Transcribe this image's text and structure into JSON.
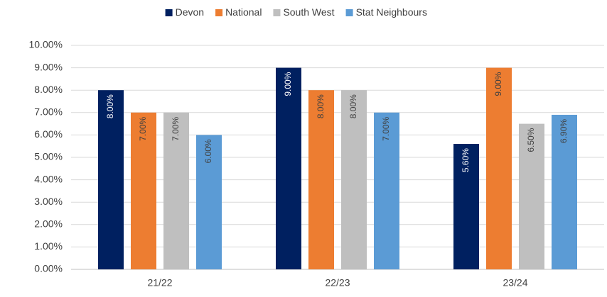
{
  "chart_data": {
    "type": "bar",
    "categories": [
      "21/22",
      "22/23",
      "23/24"
    ],
    "series": [
      {
        "name": "Devon",
        "color": "#002060",
        "label_color": "#ffffff",
        "values": [
          8,
          9,
          5.6
        ],
        "value_labels": [
          "8.00%",
          "9.00%",
          "5.60%"
        ]
      },
      {
        "name": "National",
        "color": "#ed7d31",
        "label_color": "#404040",
        "values": [
          7,
          8,
          9
        ],
        "value_labels": [
          "7.00%",
          "8.00%",
          "9.00%"
        ]
      },
      {
        "name": "South West",
        "color": "#bfbfbf",
        "label_color": "#404040",
        "values": [
          7,
          8,
          6.5
        ],
        "value_labels": [
          "7.00%",
          "8.00%",
          "6.50%"
        ]
      },
      {
        "name": "Stat Neighbours",
        "color": "#5b9bd5",
        "label_color": "#404040",
        "values": [
          6,
          7,
          6.9
        ],
        "value_labels": [
          "6.00%",
          "7.00%",
          "6.90%"
        ]
      }
    ],
    "ylim": [
      0,
      10
    ],
    "yticks": [
      {
        "value": 0,
        "label": "0.00%"
      },
      {
        "value": 1,
        "label": "1.00%"
      },
      {
        "value": 2,
        "label": "2.00%"
      },
      {
        "value": 3,
        "label": "3.00%"
      },
      {
        "value": 4,
        "label": "4.00%"
      },
      {
        "value": 5,
        "label": "5.00%"
      },
      {
        "value": 6,
        "label": "6.00%"
      },
      {
        "value": 7,
        "label": "7.00%"
      },
      {
        "value": 8,
        "label": "8.00%"
      },
      {
        "value": 9,
        "label": "9.00%"
      },
      {
        "value": 10,
        "label": "10.00%"
      }
    ],
    "grid": true,
    "legend": "top"
  }
}
